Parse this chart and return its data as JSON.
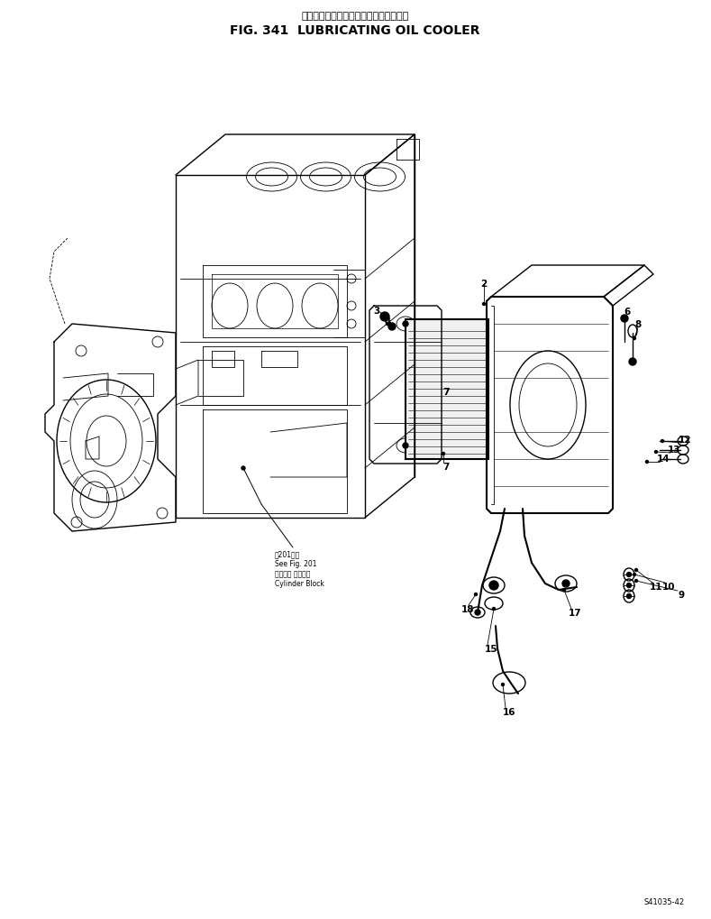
{
  "title_japanese": "ルーブリケーティング　オイル　クーラ",
  "title_english": "FIG. 341  LUBRICATING OIL COOLER",
  "background_color": "#ffffff",
  "fig_width": 7.89,
  "fig_height": 10.2,
  "dpi": 100,
  "page_number": "S41035-42"
}
